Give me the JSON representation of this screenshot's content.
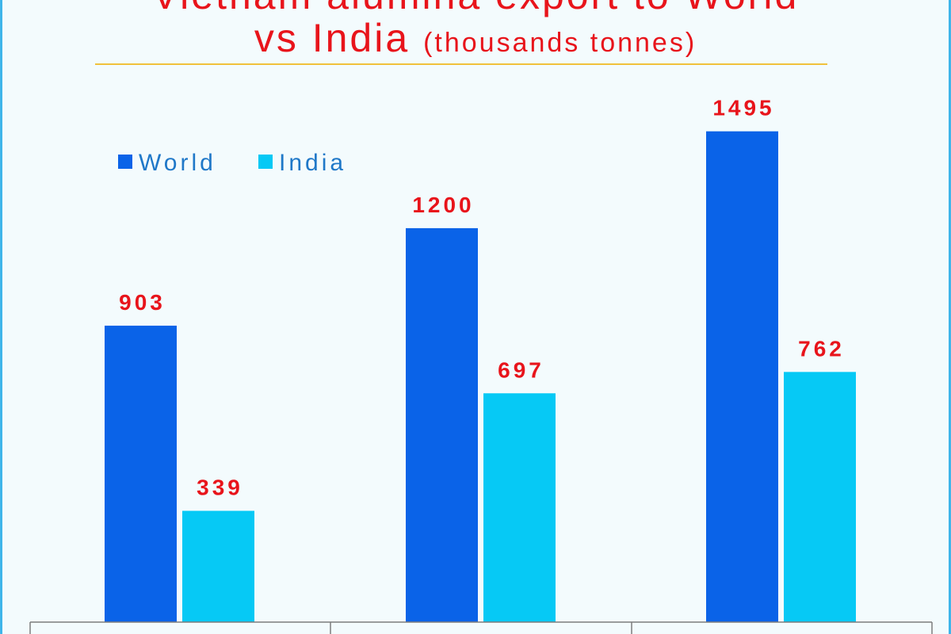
{
  "title": {
    "line1": "Vietnam alumina export to World",
    "line2_main": "vs India",
    "line2_sub": "(thousands tonnes)"
  },
  "colors": {
    "world": "#0a63e8",
    "india": "#06c9f5",
    "label": "#e8141b",
    "title": "#e8141b",
    "legend_text": "#1f78c8",
    "rule": "#f0c23c",
    "axis": "#7d7d7d",
    "background": "#f3fbfd"
  },
  "chart_data": {
    "type": "bar",
    "categories": [
      "",
      "",
      ""
    ],
    "series": [
      {
        "name": "World",
        "values": [
          903,
          1200,
          1495
        ]
      },
      {
        "name": "India",
        "values": [
          339,
          697,
          762
        ]
      }
    ],
    "ylim": [
      0,
      1895
    ],
    "grid": false,
    "legend_position": "top-left",
    "data_labels": true
  }
}
